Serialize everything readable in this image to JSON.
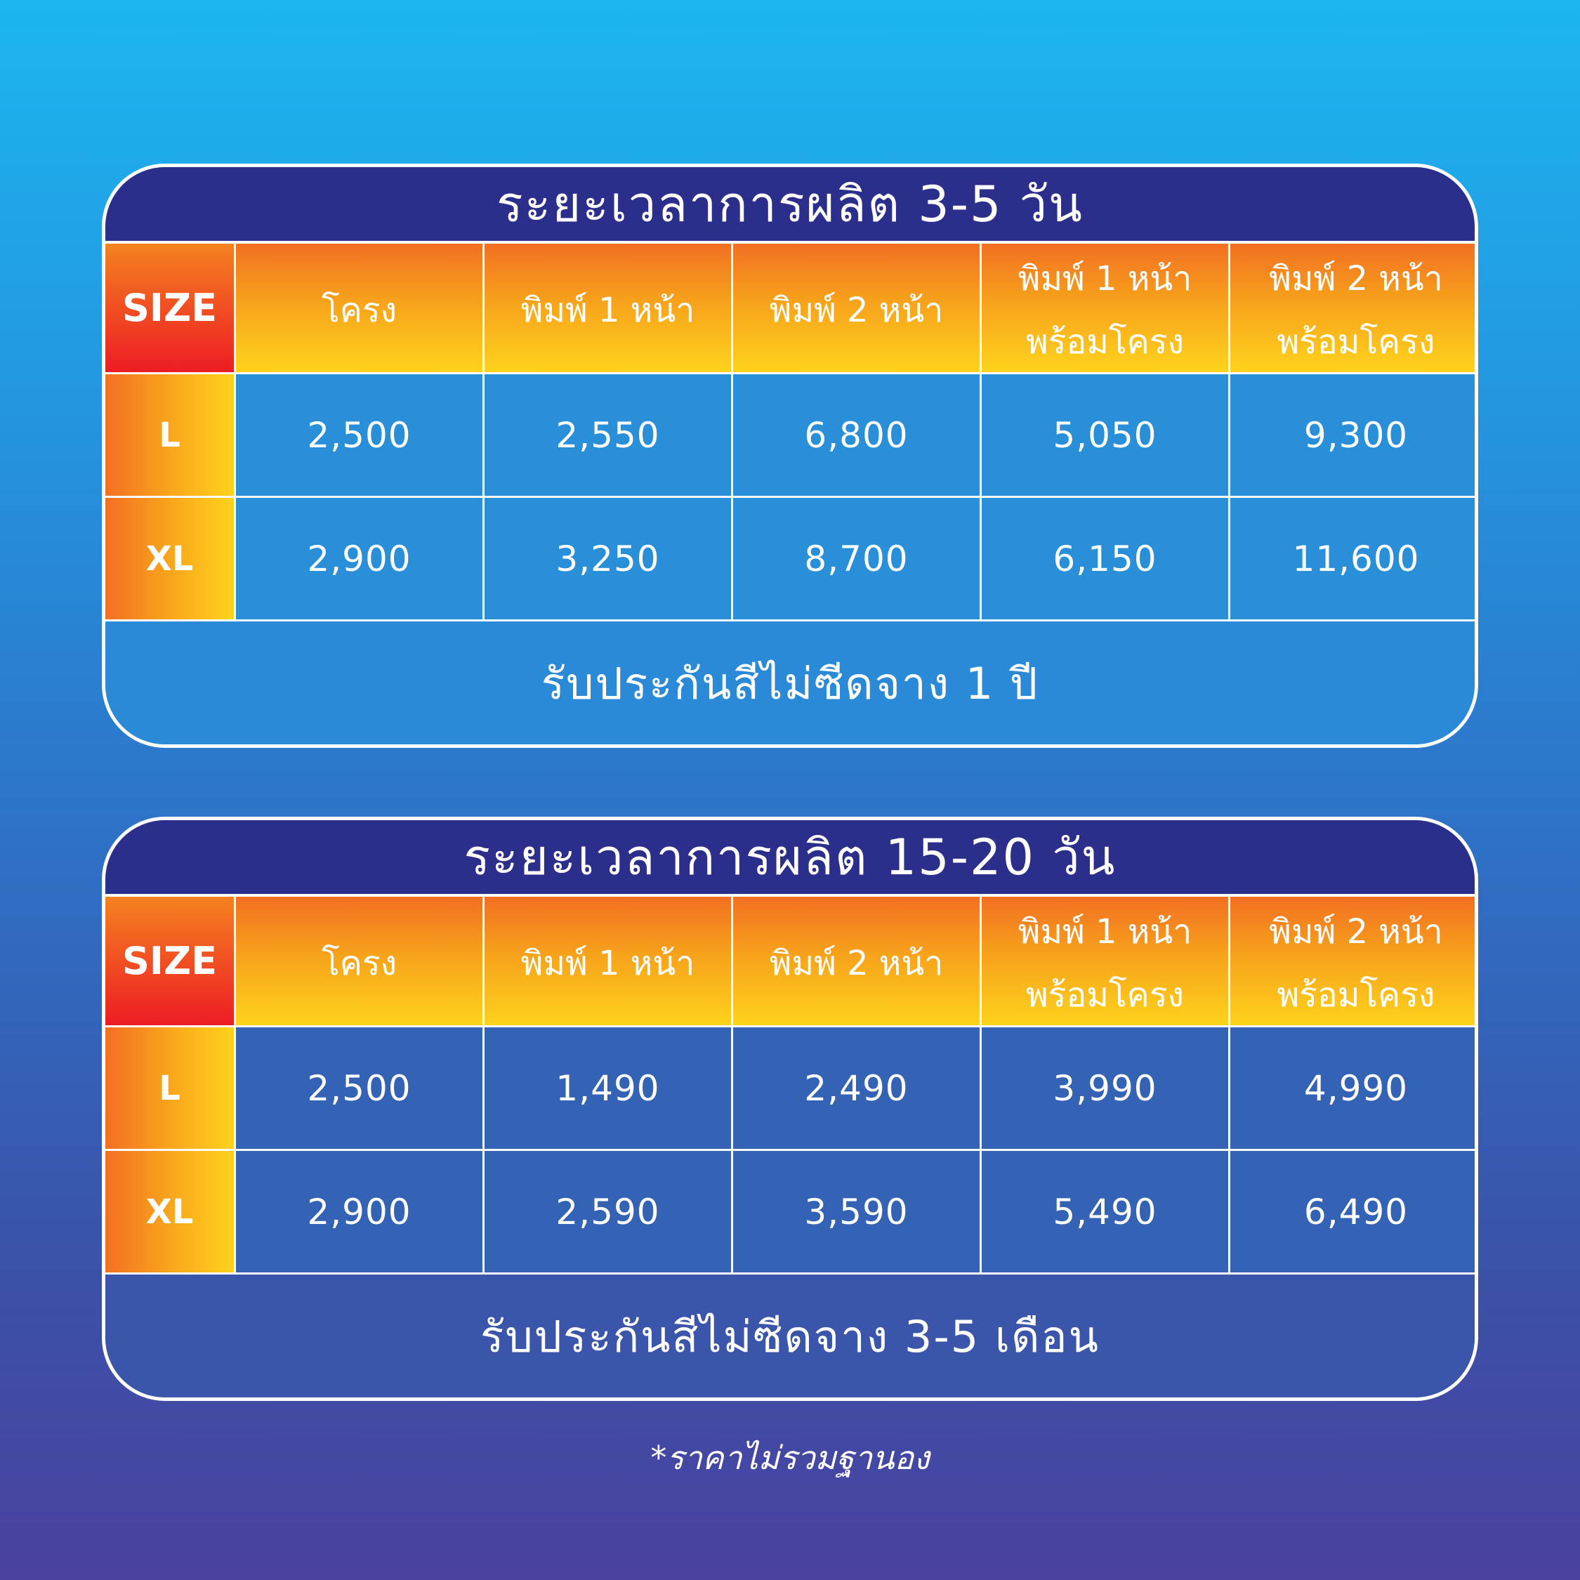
{
  "headers": {
    "size": "SIZE",
    "frame": "โครง",
    "print1": "พิมพ์ 1 หน้า",
    "print2": "พิมพ์ 2 หน้า",
    "print1_frame": [
      "พิมพ์ 1 หน้า",
      "พร้อมโครง"
    ],
    "print2_frame": [
      "พิมพ์ 2 หน้า",
      "พร้อมโครง"
    ]
  },
  "tables": [
    {
      "title": "ระยะเวลาการผลิต 3-5 วัน",
      "rows": [
        {
          "size": "L",
          "values": [
            "2,500",
            "2,550",
            "6,800",
            "5,050",
            "9,300"
          ]
        },
        {
          "size": "XL",
          "values": [
            "2,900",
            "3,250",
            "8,700",
            "6,150",
            "11,600"
          ]
        }
      ],
      "footer": "รับประกันสีไม่ซีดจาง 1 ปี"
    },
    {
      "title": "ระยะเวลาการผลิต 15-20 วัน",
      "rows": [
        {
          "size": "L",
          "values": [
            "2,500",
            "1,490",
            "2,490",
            "3,990",
            "4,990"
          ]
        },
        {
          "size": "XL",
          "values": [
            "2,900",
            "2,590",
            "3,590",
            "5,490",
            "6,490"
          ]
        }
      ],
      "footer": "รับประกันสีไม่ซีดจาง 3-5 เดือน"
    }
  ],
  "note": "*ราคาไม่รวมฐานอง",
  "colors": {
    "title_bar": "#2b2e8a",
    "header_orange": "#f26f22",
    "header_yellow": "#ffd31c",
    "size_red": "#ed1c24"
  }
}
